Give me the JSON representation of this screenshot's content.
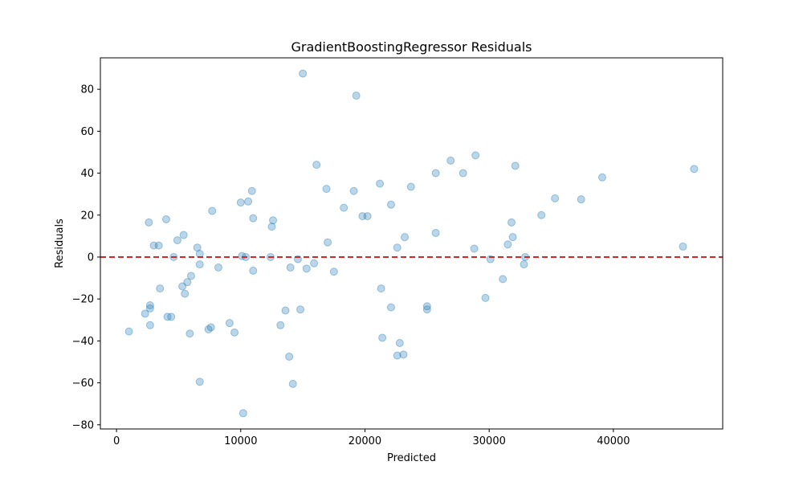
{
  "chart_data": {
    "type": "scatter",
    "title": "GradientBoostingRegressor Residuals",
    "xlabel": "Predicted",
    "ylabel": "Residuals",
    "xlim": [
      -1300,
      48800
    ],
    "ylim": [
      -82,
      95
    ],
    "xticks": [
      0,
      10000,
      20000,
      30000,
      40000
    ],
    "yticks": [
      -80,
      -60,
      -40,
      -20,
      0,
      20,
      40,
      60,
      80
    ],
    "grid": false,
    "reference_line": {
      "y": 0,
      "style": "dashed",
      "color": "#d62728"
    },
    "point_color": "#1f77b4",
    "point_opacity": 0.3,
    "points": [
      [
        1000,
        -35.5
      ],
      [
        2300,
        -27
      ],
      [
        2600,
        16.5
      ],
      [
        2700,
        -23
      ],
      [
        2700,
        -24.5
      ],
      [
        2700,
        -32.5
      ],
      [
        3000,
        5.5
      ],
      [
        3400,
        5.5
      ],
      [
        3500,
        -15
      ],
      [
        4000,
        18
      ],
      [
        4100,
        -28.5
      ],
      [
        4400,
        -28.5
      ],
      [
        4600,
        0
      ],
      [
        4900,
        8
      ],
      [
        5300,
        -14
      ],
      [
        5400,
        10.5
      ],
      [
        5500,
        -17.5
      ],
      [
        5700,
        -12
      ],
      [
        5900,
        -36.5
      ],
      [
        6000,
        -9
      ],
      [
        6500,
        4.5
      ],
      [
        6700,
        1.5
      ],
      [
        6700,
        -3.5
      ],
      [
        6700,
        -59.5
      ],
      [
        7400,
        -34.5
      ],
      [
        7600,
        -33.5
      ],
      [
        7700,
        22
      ],
      [
        8200,
        -5
      ],
      [
        9100,
        -31.5
      ],
      [
        9500,
        -36
      ],
      [
        10000,
        26
      ],
      [
        10100,
        0.5
      ],
      [
        10200,
        -74.5
      ],
      [
        10400,
        0
      ],
      [
        10600,
        26.5
      ],
      [
        10900,
        31.5
      ],
      [
        11000,
        18.5
      ],
      [
        11000,
        -6.5
      ],
      [
        12400,
        0
      ],
      [
        12500,
        14.5
      ],
      [
        12600,
        17.5
      ],
      [
        13200,
        -32.5
      ],
      [
        13600,
        -25.5
      ],
      [
        13900,
        -47.5
      ],
      [
        14000,
        -5
      ],
      [
        14200,
        -60.5
      ],
      [
        14600,
        -1
      ],
      [
        14800,
        -25
      ],
      [
        15000,
        87.5
      ],
      [
        15300,
        -5.5
      ],
      [
        15900,
        -3
      ],
      [
        16100,
        44
      ],
      [
        16900,
        32.5
      ],
      [
        17000,
        7
      ],
      [
        17500,
        -7
      ],
      [
        18300,
        23.5
      ],
      [
        19100,
        31.5
      ],
      [
        19300,
        77
      ],
      [
        19800,
        19.5
      ],
      [
        20200,
        19.5
      ],
      [
        21200,
        35
      ],
      [
        21300,
        -15
      ],
      [
        21400,
        -38.5
      ],
      [
        22100,
        25
      ],
      [
        22100,
        -24
      ],
      [
        22600,
        4.5
      ],
      [
        22600,
        -47
      ],
      [
        22800,
        -41
      ],
      [
        23100,
        -46.5
      ],
      [
        23200,
        9.5
      ],
      [
        23700,
        33.5
      ],
      [
        25000,
        -23.5
      ],
      [
        25000,
        -25
      ],
      [
        25700,
        40
      ],
      [
        25700,
        11.5
      ],
      [
        26900,
        46
      ],
      [
        27900,
        40
      ],
      [
        28800,
        4
      ],
      [
        28900,
        48.5
      ],
      [
        29700,
        -19.5
      ],
      [
        30100,
        -1
      ],
      [
        31100,
        -10.5
      ],
      [
        31500,
        6
      ],
      [
        31800,
        16.5
      ],
      [
        31900,
        9.5
      ],
      [
        32100,
        43.5
      ],
      [
        32800,
        -3.5
      ],
      [
        32900,
        0
      ],
      [
        34200,
        20
      ],
      [
        35300,
        28
      ],
      [
        37400,
        27.5
      ],
      [
        39100,
        38
      ],
      [
        45600,
        5
      ],
      [
        46500,
        42
      ]
    ]
  }
}
